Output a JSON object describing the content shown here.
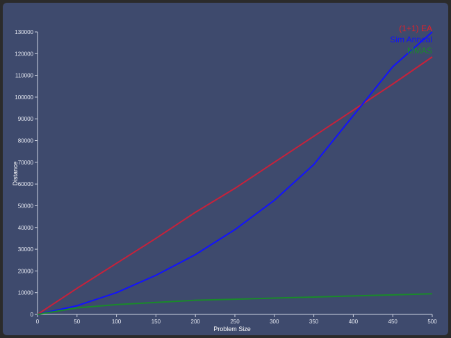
{
  "chart_data": {
    "type": "line",
    "xlabel": "Problem Size",
    "ylabel": "Distance",
    "xlim": [
      0,
      500
    ],
    "ylim": [
      0,
      130000
    ],
    "x_ticks": [
      0,
      50,
      100,
      150,
      200,
      250,
      300,
      350,
      400,
      450,
      500
    ],
    "y_ticks": [
      0,
      10000,
      20000,
      30000,
      40000,
      50000,
      60000,
      70000,
      80000,
      90000,
      100000,
      110000,
      120000,
      130000
    ],
    "grid": false,
    "legend_position": "top-right",
    "x": [
      0,
      50,
      100,
      150,
      200,
      250,
      300,
      350,
      400,
      450,
      500
    ],
    "series": [
      {
        "name": "(1+1) EA",
        "color": "#e0202a",
        "line_color": "#c8213a",
        "values": [
          0,
          12000,
          23500,
          35000,
          47000,
          58000,
          70000,
          82000,
          94000,
          106000,
          118500
        ]
      },
      {
        "name": "Sim Anneal",
        "color": "#1010ff",
        "line_color": "#1212ff",
        "values": [
          0,
          4000,
          10000,
          18000,
          27500,
          39000,
          52500,
          69000,
          91500,
          114000,
          130000
        ]
      },
      {
        "name": "MMAS",
        "color": "#1a8a2a",
        "line_color": "#1a8a2a",
        "values": [
          0,
          3000,
          4500,
          5500,
          6500,
          7000,
          7500,
          8000,
          8500,
          9000,
          9500
        ]
      }
    ]
  }
}
